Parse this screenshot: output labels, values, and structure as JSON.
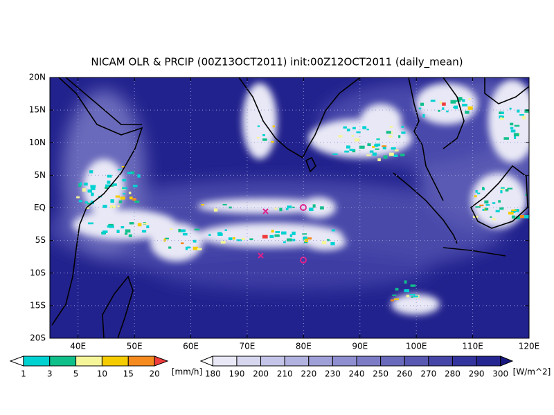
{
  "title": "NICAM OLR & PRCIP (00Z13OCT2011) init:00Z12OCT2011 (daily_mean)",
  "map": {
    "lon_range": [
      35,
      120
    ],
    "lat_range": [
      -20,
      20
    ],
    "lat_ticks": [
      {
        "value": 20,
        "label": "20N"
      },
      {
        "value": 15,
        "label": "15N"
      },
      {
        "value": 10,
        "label": "10N"
      },
      {
        "value": 5,
        "label": "5N"
      },
      {
        "value": 0,
        "label": "EQ"
      },
      {
        "value": -5,
        "label": "5S"
      },
      {
        "value": -10,
        "label": "10S"
      },
      {
        "value": -15,
        "label": "15S"
      },
      {
        "value": -20,
        "label": "20S"
      }
    ],
    "lon_ticks": [
      {
        "value": 40,
        "label": "40E"
      },
      {
        "value": 50,
        "label": "50E"
      },
      {
        "value": 60,
        "label": "60E"
      },
      {
        "value": 70,
        "label": "70E"
      },
      {
        "value": 80,
        "label": "80E"
      },
      {
        "value": 90,
        "label": "90E"
      },
      {
        "value": 100,
        "label": "100E"
      },
      {
        "value": 110,
        "label": "110E"
      },
      {
        "value": 120,
        "label": "120E"
      }
    ]
  },
  "precip_colorbar": {
    "unit": "[mm/h]",
    "ticks": [
      1,
      3,
      5,
      10,
      15,
      20
    ],
    "colors": [
      "#ffffff",
      "#00d2d2",
      "#10c08a",
      "#f5f59a",
      "#f5cc00",
      "#f58a1e",
      "#f03c3c"
    ]
  },
  "olr_colorbar": {
    "unit": "[W/m^2]",
    "ticks": [
      180,
      190,
      200,
      210,
      220,
      230,
      240,
      250,
      260,
      270,
      280,
      290,
      300
    ],
    "colors": [
      "#ffffff",
      "#e8e8f6",
      "#d6d6ef",
      "#c4c4e8",
      "#b2b2e0",
      "#a0a0d8",
      "#8e8ed0",
      "#7c7cc6",
      "#6a6abc",
      "#5858b2",
      "#4646a8",
      "#34349e",
      "#262692",
      "#181882"
    ]
  }
}
